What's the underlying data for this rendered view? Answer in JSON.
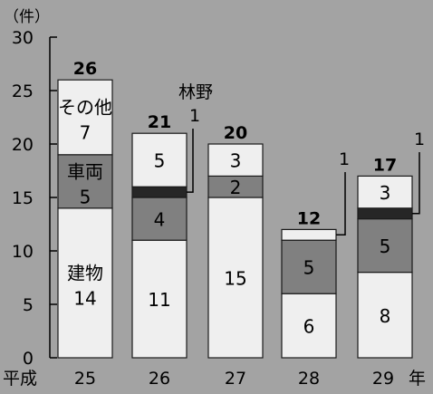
{
  "chart_data": {
    "type": "bar",
    "stacked": true,
    "title": "",
    "ylabel": "（件）",
    "xlabel_prefix": "平成",
    "xlabel_suffix": "年",
    "ylim": [
      0,
      30
    ],
    "yticks": [
      0,
      5,
      10,
      15,
      20,
      25,
      30
    ],
    "categories": [
      "25",
      "26",
      "27",
      "28",
      "29"
    ],
    "totals": [
      26,
      21,
      20,
      12,
      17
    ],
    "series": [
      {
        "name": "建物",
        "values": [
          14,
          11,
          15,
          6,
          8
        ],
        "color": "#efefef"
      },
      {
        "name": "車両",
        "values": [
          5,
          4,
          2,
          5,
          5
        ],
        "color": "#808080"
      },
      {
        "name": "林野",
        "values": [
          0,
          1,
          0,
          0,
          1
        ],
        "color": "#262626"
      },
      {
        "name": "その他",
        "values": [
          7,
          5,
          3,
          1,
          3
        ],
        "color": "#efefef"
      }
    ],
    "annotations": {
      "building_label": "建物",
      "vehicle_label": "車両",
      "other_label": "その他",
      "forest_label": "林野",
      "callouts": [
        {
          "category": "26",
          "text": "1"
        },
        {
          "category": "28",
          "text": "1"
        },
        {
          "category": "29",
          "text": "1"
        }
      ]
    },
    "grid": false,
    "legend": "none"
  }
}
